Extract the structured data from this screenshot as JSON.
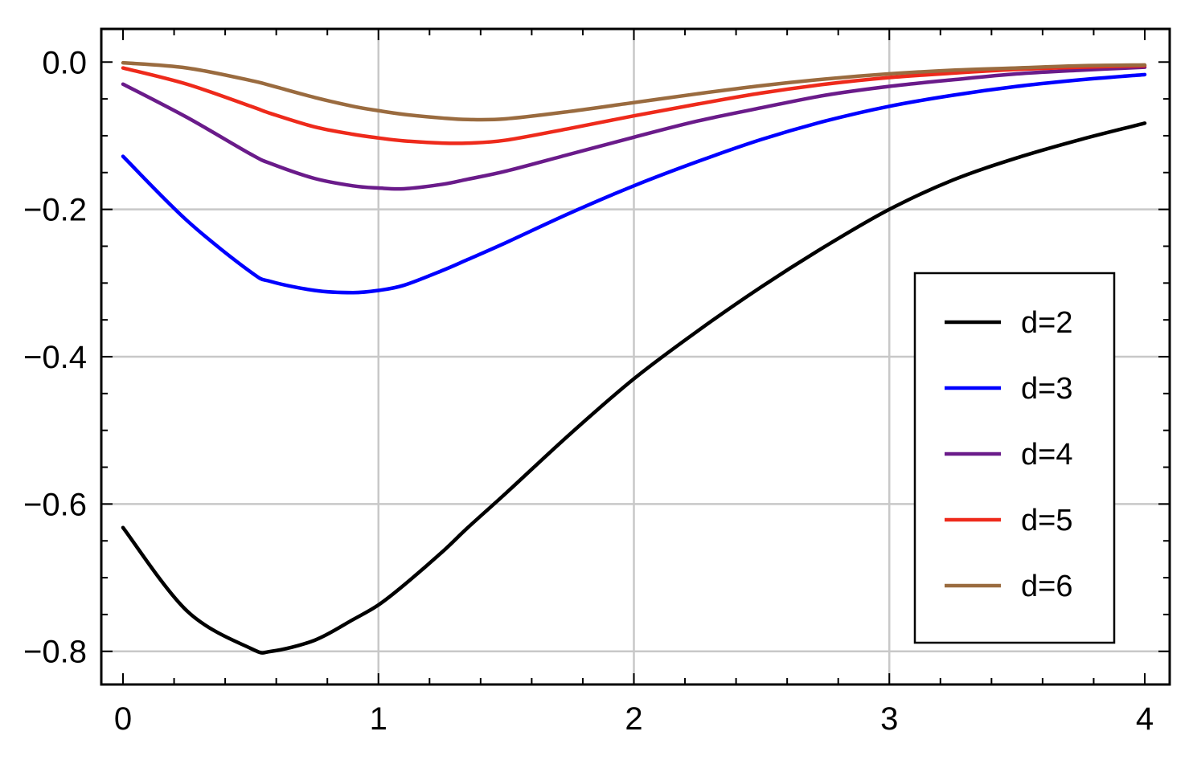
{
  "chart_data": {
    "type": "line",
    "title": "",
    "xlabel": "",
    "ylabel": "",
    "xlim": [
      0,
      4
    ],
    "ylim": [
      -0.845,
      0.045
    ],
    "x_ticks": [
      0,
      1,
      2,
      3,
      4
    ],
    "x_tick_labels": [
      "0",
      "1",
      "2",
      "3",
      "4"
    ],
    "y_ticks": [
      0.0,
      -0.2,
      -0.4,
      -0.6,
      -0.8
    ],
    "y_tick_labels": [
      "0.0",
      "−0.2",
      "−0.4",
      "−0.6",
      "−0.8"
    ],
    "grid": true,
    "legend_position": "right",
    "x": [
      0,
      0.25,
      0.5,
      0.58,
      0.75,
      0.9,
      1.0,
      1.1,
      1.25,
      1.35,
      1.5,
      1.75,
      2.0,
      2.25,
      2.5,
      2.75,
      3.0,
      3.25,
      3.5,
      3.75,
      4.0
    ],
    "series": [
      {
        "name": "d=2",
        "color": "#000000",
        "values": [
          -0.632,
          -0.745,
          -0.796,
          -0.8,
          -0.785,
          -0.757,
          -0.737,
          -0.71,
          -0.665,
          -0.632,
          -0.585,
          -0.505,
          -0.43,
          -0.365,
          -0.305,
          -0.25,
          -0.2,
          -0.16,
          -0.13,
          -0.105,
          -0.083
        ]
      },
      {
        "name": "d=3",
        "color": "#0000ff",
        "values": [
          -0.128,
          -0.215,
          -0.285,
          -0.298,
          -0.31,
          -0.313,
          -0.31,
          -0.303,
          -0.283,
          -0.268,
          -0.245,
          -0.205,
          -0.168,
          -0.135,
          -0.105,
          -0.08,
          -0.06,
          -0.045,
          -0.033,
          -0.024,
          -0.017
        ]
      },
      {
        "name": "d=4",
        "color": "#6a1b8a",
        "values": [
          -0.03,
          -0.075,
          -0.125,
          -0.138,
          -0.158,
          -0.168,
          -0.171,
          -0.172,
          -0.166,
          -0.159,
          -0.148,
          -0.125,
          -0.102,
          -0.08,
          -0.062,
          -0.045,
          -0.033,
          -0.024,
          -0.016,
          -0.011,
          -0.007
        ]
      },
      {
        "name": "d=5",
        "color": "#ee2a1b",
        "values": [
          -0.008,
          -0.03,
          -0.06,
          -0.07,
          -0.088,
          -0.098,
          -0.103,
          -0.107,
          -0.11,
          -0.11,
          -0.106,
          -0.09,
          -0.073,
          -0.057,
          -0.042,
          -0.03,
          -0.021,
          -0.015,
          -0.01,
          -0.007,
          -0.005
        ]
      },
      {
        "name": "d=6",
        "color": "#9a6b3f",
        "values": [
          -0.001,
          -0.008,
          -0.025,
          -0.032,
          -0.048,
          -0.06,
          -0.066,
          -0.071,
          -0.076,
          -0.078,
          -0.077,
          -0.067,
          -0.055,
          -0.043,
          -0.032,
          -0.023,
          -0.016,
          -0.011,
          -0.008,
          -0.005,
          -0.004
        ]
      }
    ]
  }
}
